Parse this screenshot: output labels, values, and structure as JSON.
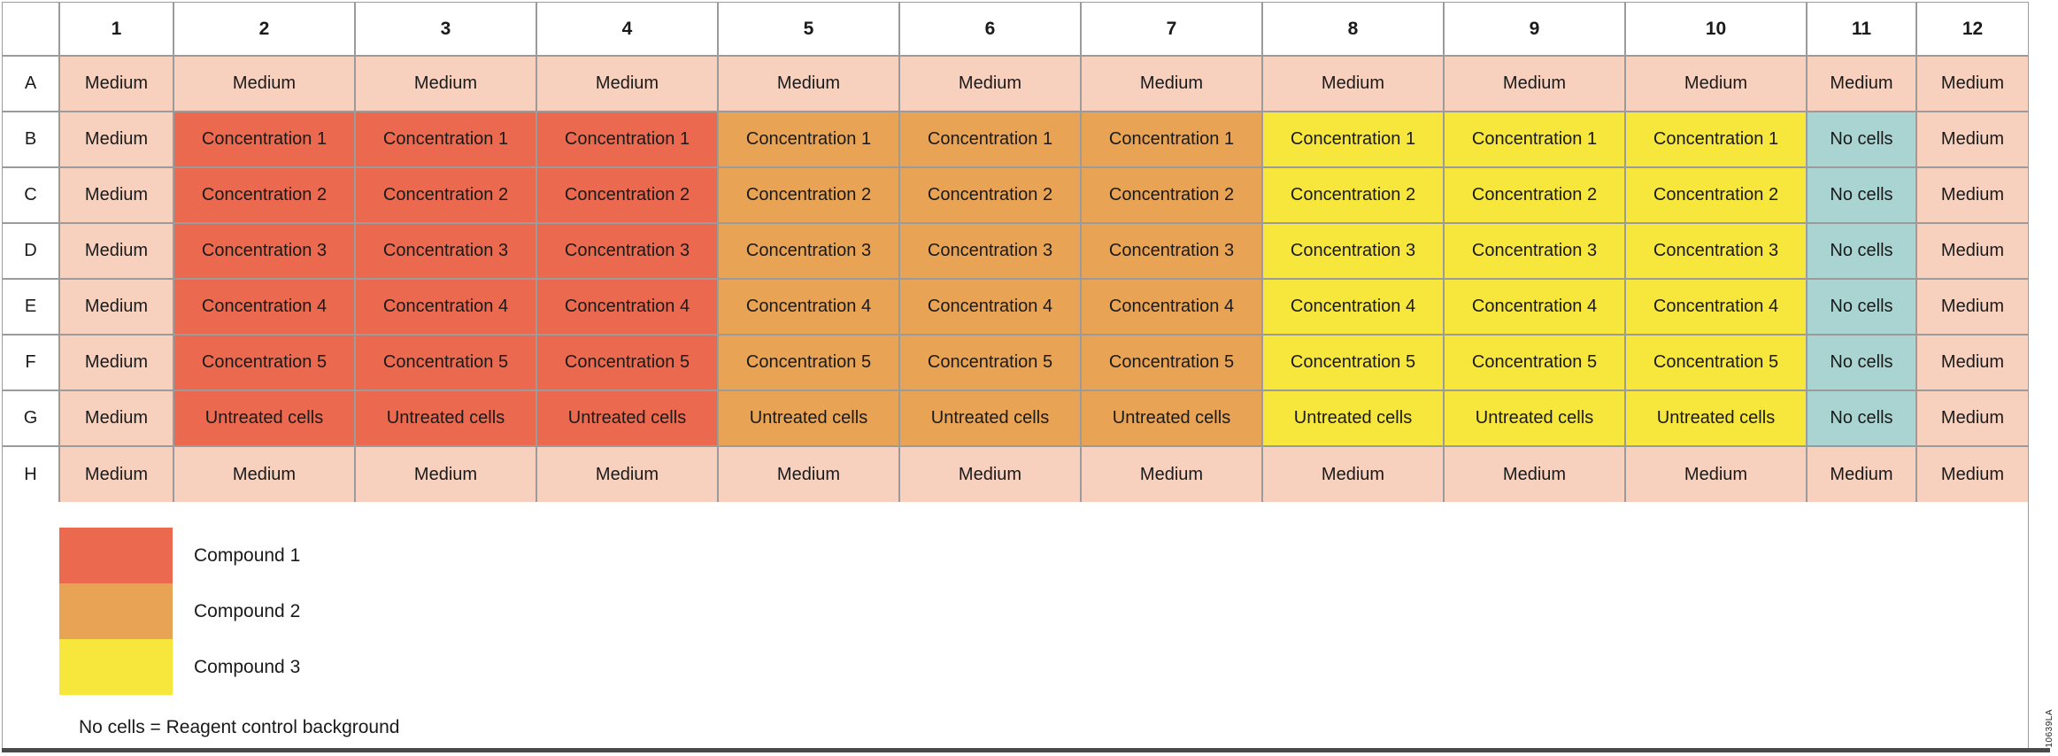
{
  "colors": {
    "medium": "#F8D0BE",
    "compound1": "#EB6A4F",
    "compound2": "#E9A355",
    "compound3": "#F7E73D",
    "no_cells": "#A9D4D1",
    "grid_line": "#9B9B9B",
    "bottom_bar": "#4A4A4A"
  },
  "plate": {
    "column_headers": [
      "1",
      "2",
      "3",
      "4",
      "5",
      "6",
      "7",
      "8",
      "9",
      "10",
      "11",
      "12"
    ],
    "rows": [
      {
        "label": "A",
        "cells": [
          {
            "text": "Medium",
            "bg": "medium"
          },
          {
            "text": "Medium",
            "bg": "medium"
          },
          {
            "text": "Medium",
            "bg": "medium"
          },
          {
            "text": "Medium",
            "bg": "medium"
          },
          {
            "text": "Medium",
            "bg": "medium"
          },
          {
            "text": "Medium",
            "bg": "medium"
          },
          {
            "text": "Medium",
            "bg": "medium"
          },
          {
            "text": "Medium",
            "bg": "medium"
          },
          {
            "text": "Medium",
            "bg": "medium"
          },
          {
            "text": "Medium",
            "bg": "medium"
          },
          {
            "text": "Medium",
            "bg": "medium"
          },
          {
            "text": "Medium",
            "bg": "medium"
          }
        ]
      },
      {
        "label": "B",
        "cells": [
          {
            "text": "Medium",
            "bg": "medium"
          },
          {
            "text": "Concentration 1",
            "bg": "compound1"
          },
          {
            "text": "Concentration 1",
            "bg": "compound1"
          },
          {
            "text": "Concentration 1",
            "bg": "compound1"
          },
          {
            "text": "Concentration 1",
            "bg": "compound2"
          },
          {
            "text": "Concentration 1",
            "bg": "compound2"
          },
          {
            "text": "Concentration 1",
            "bg": "compound2"
          },
          {
            "text": "Concentration 1",
            "bg": "compound3"
          },
          {
            "text": "Concentration 1",
            "bg": "compound3"
          },
          {
            "text": "Concentration 1",
            "bg": "compound3"
          },
          {
            "text": "No cells",
            "bg": "no_cells"
          },
          {
            "text": "Medium",
            "bg": "medium"
          }
        ]
      },
      {
        "label": "C",
        "cells": [
          {
            "text": "Medium",
            "bg": "medium"
          },
          {
            "text": "Concentration 2",
            "bg": "compound1"
          },
          {
            "text": "Concentration 2",
            "bg": "compound1"
          },
          {
            "text": "Concentration 2",
            "bg": "compound1"
          },
          {
            "text": "Concentration 2",
            "bg": "compound2"
          },
          {
            "text": "Concentration 2",
            "bg": "compound2"
          },
          {
            "text": "Concentration 2",
            "bg": "compound2"
          },
          {
            "text": "Concentration 2",
            "bg": "compound3"
          },
          {
            "text": "Concentration 2",
            "bg": "compound3"
          },
          {
            "text": "Concentration 2",
            "bg": "compound3"
          },
          {
            "text": "No cells",
            "bg": "no_cells"
          },
          {
            "text": "Medium",
            "bg": "medium"
          }
        ]
      },
      {
        "label": "D",
        "cells": [
          {
            "text": "Medium",
            "bg": "medium"
          },
          {
            "text": "Concentration 3",
            "bg": "compound1"
          },
          {
            "text": "Concentration 3",
            "bg": "compound1"
          },
          {
            "text": "Concentration 3",
            "bg": "compound1"
          },
          {
            "text": "Concentration 3",
            "bg": "compound2"
          },
          {
            "text": "Concentration 3",
            "bg": "compound2"
          },
          {
            "text": "Concentration 3",
            "bg": "compound2"
          },
          {
            "text": "Concentration 3",
            "bg": "compound3"
          },
          {
            "text": "Concentration 3",
            "bg": "compound3"
          },
          {
            "text": "Concentration 3",
            "bg": "compound3"
          },
          {
            "text": "No cells",
            "bg": "no_cells"
          },
          {
            "text": "Medium",
            "bg": "medium"
          }
        ]
      },
      {
        "label": "E",
        "cells": [
          {
            "text": "Medium",
            "bg": "medium"
          },
          {
            "text": "Concentration 4",
            "bg": "compound1"
          },
          {
            "text": "Concentration 4",
            "bg": "compound1"
          },
          {
            "text": "Concentration 4",
            "bg": "compound1"
          },
          {
            "text": "Concentration 4",
            "bg": "compound2"
          },
          {
            "text": "Concentration 4",
            "bg": "compound2"
          },
          {
            "text": "Concentration 4",
            "bg": "compound2"
          },
          {
            "text": "Concentration 4",
            "bg": "compound3"
          },
          {
            "text": "Concentration 4",
            "bg": "compound3"
          },
          {
            "text": "Concentration 4",
            "bg": "compound3"
          },
          {
            "text": "No cells",
            "bg": "no_cells"
          },
          {
            "text": "Medium",
            "bg": "medium"
          }
        ]
      },
      {
        "label": "F",
        "cells": [
          {
            "text": "Medium",
            "bg": "medium"
          },
          {
            "text": "Concentration 5",
            "bg": "compound1"
          },
          {
            "text": "Concentration 5",
            "bg": "compound1"
          },
          {
            "text": "Concentration 5",
            "bg": "compound1"
          },
          {
            "text": "Concentration 5",
            "bg": "compound2"
          },
          {
            "text": "Concentration 5",
            "bg": "compound2"
          },
          {
            "text": "Concentration 5",
            "bg": "compound2"
          },
          {
            "text": "Concentration 5",
            "bg": "compound3"
          },
          {
            "text": "Concentration 5",
            "bg": "compound3"
          },
          {
            "text": "Concentration 5",
            "bg": "compound3"
          },
          {
            "text": "No cells",
            "bg": "no_cells"
          },
          {
            "text": "Medium",
            "bg": "medium"
          }
        ]
      },
      {
        "label": "G",
        "cells": [
          {
            "text": "Medium",
            "bg": "medium"
          },
          {
            "text": "Untreated cells",
            "bg": "compound1"
          },
          {
            "text": "Untreated cells",
            "bg": "compound1"
          },
          {
            "text": "Untreated cells",
            "bg": "compound1"
          },
          {
            "text": "Untreated cells",
            "bg": "compound2"
          },
          {
            "text": "Untreated cells",
            "bg": "compound2"
          },
          {
            "text": "Untreated cells",
            "bg": "compound2"
          },
          {
            "text": "Untreated cells",
            "bg": "compound3"
          },
          {
            "text": "Untreated cells",
            "bg": "compound3"
          },
          {
            "text": "Untreated cells",
            "bg": "compound3"
          },
          {
            "text": "No cells",
            "bg": "no_cells"
          },
          {
            "text": "Medium",
            "bg": "medium"
          }
        ]
      },
      {
        "label": "H",
        "cells": [
          {
            "text": "Medium",
            "bg": "medium"
          },
          {
            "text": "Medium",
            "bg": "medium"
          },
          {
            "text": "Medium",
            "bg": "medium"
          },
          {
            "text": "Medium",
            "bg": "medium"
          },
          {
            "text": "Medium",
            "bg": "medium"
          },
          {
            "text": "Medium",
            "bg": "medium"
          },
          {
            "text": "Medium",
            "bg": "medium"
          },
          {
            "text": "Medium",
            "bg": "medium"
          },
          {
            "text": "Medium",
            "bg": "medium"
          },
          {
            "text": "Medium",
            "bg": "medium"
          },
          {
            "text": "Medium",
            "bg": "medium"
          },
          {
            "text": "Medium",
            "bg": "medium"
          }
        ]
      }
    ]
  },
  "legend": {
    "items": [
      {
        "label": "Compound 1",
        "color": "#EB6A4F"
      },
      {
        "label": "Compound 2",
        "color": "#E9A355"
      },
      {
        "label": "Compound 3",
        "color": "#F7E73D"
      }
    ],
    "note": "No cells = Reagent control background"
  },
  "figure_code": "10639LA"
}
